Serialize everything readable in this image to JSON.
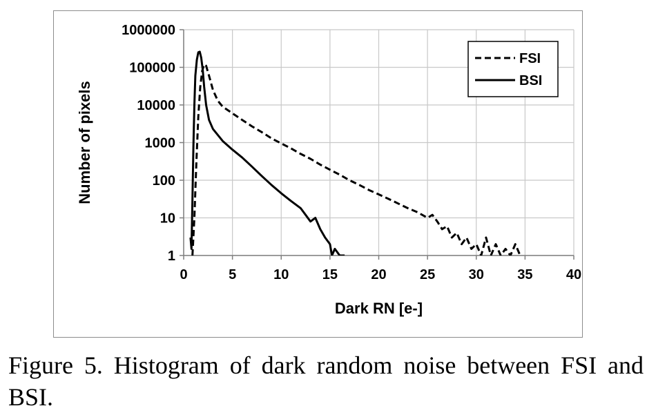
{
  "chart_data": {
    "type": "line",
    "title": "",
    "xlabel": "Dark RN [e-]",
    "ylabel": "Number of pixels",
    "xlim": [
      0,
      40
    ],
    "ylim": [
      1,
      1000000
    ],
    "yscale": "log",
    "grid": true,
    "legend_position": "top-right",
    "x_ticks": [
      "0",
      "5",
      "10",
      "15",
      "20",
      "25",
      "30",
      "35",
      "40"
    ],
    "y_ticks": [
      "1",
      "10",
      "100",
      "1000",
      "10000",
      "100000",
      "1000000"
    ],
    "series": [
      {
        "name": "FSI",
        "style": "dashed",
        "color": "#000000",
        "points": [
          [
            0.9,
            1
          ],
          [
            1.1,
            10
          ],
          [
            1.3,
            300
          ],
          [
            1.5,
            5000
          ],
          [
            1.7,
            30000
          ],
          [
            1.9,
            80000
          ],
          [
            2.1,
            120000
          ],
          [
            2.3,
            110000
          ],
          [
            2.6,
            60000
          ],
          [
            3.0,
            25000
          ],
          [
            3.5,
            13000
          ],
          [
            4.0,
            9000
          ],
          [
            5.0,
            6000
          ],
          [
            6.0,
            4000
          ],
          [
            7.0,
            2700
          ],
          [
            8.0,
            1900
          ],
          [
            9.0,
            1300
          ],
          [
            10.0,
            950
          ],
          [
            11.0,
            700
          ],
          [
            12.0,
            500
          ],
          [
            13.0,
            370
          ],
          [
            14.0,
            260
          ],
          [
            15.0,
            190
          ],
          [
            16.0,
            140
          ],
          [
            17.0,
            100
          ],
          [
            18.0,
            75
          ],
          [
            19.0,
            55
          ],
          [
            20.0,
            42
          ],
          [
            21.0,
            32
          ],
          [
            22.0,
            24
          ],
          [
            23.0,
            18
          ],
          [
            24.0,
            14
          ],
          [
            25.0,
            10
          ],
          [
            25.5,
            12
          ],
          [
            26.0,
            8
          ],
          [
            26.5,
            5
          ],
          [
            27.0,
            6
          ],
          [
            27.5,
            3
          ],
          [
            28.0,
            4
          ],
          [
            28.5,
            2
          ],
          [
            29.0,
            3
          ],
          [
            29.5,
            1.5
          ],
          [
            30.0,
            2
          ],
          [
            30.5,
            1
          ],
          [
            31.0,
            3
          ],
          [
            31.5,
            1
          ],
          [
            32.0,
            2
          ],
          [
            32.5,
            1
          ],
          [
            33.0,
            1.5
          ],
          [
            33.5,
            1
          ],
          [
            34.0,
            2
          ],
          [
            34.5,
            1
          ]
        ]
      },
      {
        "name": "BSI",
        "style": "solid",
        "color": "#000000",
        "points": [
          [
            0.7,
            3
          ],
          [
            0.8,
            1.5
          ],
          [
            0.9,
            30
          ],
          [
            1.0,
            800
          ],
          [
            1.1,
            10000
          ],
          [
            1.2,
            60000
          ],
          [
            1.35,
            160000
          ],
          [
            1.5,
            250000
          ],
          [
            1.65,
            260000
          ],
          [
            1.8,
            180000
          ],
          [
            1.95,
            90000
          ],
          [
            2.1,
            30000
          ],
          [
            2.3,
            10000
          ],
          [
            2.6,
            4000
          ],
          [
            3.0,
            2300
          ],
          [
            3.5,
            1600
          ],
          [
            4.0,
            1100
          ],
          [
            5.0,
            650
          ],
          [
            6.0,
            400
          ],
          [
            7.0,
            230
          ],
          [
            8.0,
            130
          ],
          [
            9.0,
            75
          ],
          [
            10.0,
            45
          ],
          [
            11.0,
            28
          ],
          [
            12.0,
            18
          ],
          [
            12.5,
            12
          ],
          [
            13.0,
            8
          ],
          [
            13.5,
            10
          ],
          [
            14.0,
            5
          ],
          [
            14.5,
            3
          ],
          [
            15.0,
            2
          ],
          [
            15.2,
            1
          ],
          [
            15.5,
            1.5
          ],
          [
            16.0,
            1
          ],
          [
            16.5,
            1
          ]
        ]
      }
    ]
  },
  "caption": "Figure 5. Histogram of dark random noise between FSI and BSI."
}
